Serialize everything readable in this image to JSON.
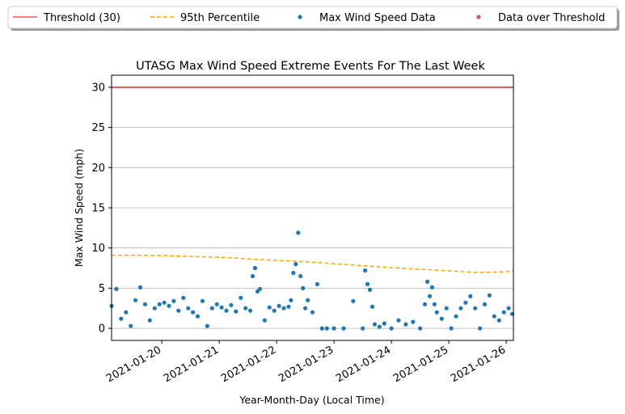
{
  "chart_data": {
    "type": "scatter",
    "title": "UTASG Max Wind Speed Extreme Events For The Last Week",
    "xlabel": "Year-Month-Day (Local Time)",
    "ylabel": "Max Wind Speed (mph)",
    "xlim": [
      "2021-01-19 03:00",
      "2021-01-26 03:00"
    ],
    "ylim": [
      -1.5,
      31.5
    ],
    "x_ticks": [
      "2021-01-20",
      "2021-01-21",
      "2021-01-22",
      "2021-01-23",
      "2021-01-24",
      "2021-01-25",
      "2021-01-26"
    ],
    "y_ticks": [
      0,
      5,
      10,
      15,
      20,
      25,
      30
    ],
    "grid": "horizontal",
    "legend_placement": "top-center-outside",
    "legend": [
      {
        "label": "Threshold (30)",
        "kind": "line",
        "color": "#f08080"
      },
      {
        "label": "95th Percentile",
        "kind": "dashed",
        "color": "#ffa500"
      },
      {
        "label": "Max Wind Speed Data",
        "kind": "marker",
        "color": "#1f77b4"
      },
      {
        "label": "Data over Threshold",
        "kind": "marker",
        "color": "#cd5c5c"
      }
    ],
    "threshold": {
      "value": 30,
      "color": "#e05555"
    },
    "percentile_95": {
      "x": [
        "2021-01-19 03:00",
        "2021-01-19 12:00",
        "2021-01-20 00:00",
        "2021-01-20 12:00",
        "2021-01-21 00:00",
        "2021-01-21 12:00",
        "2021-01-22 00:00",
        "2021-01-22 12:00",
        "2021-01-23 00:00",
        "2021-01-23 12:00",
        "2021-01-24 00:00",
        "2021-01-24 12:00",
        "2021-01-25 00:00",
        "2021-01-25 12:00",
        "2021-01-26 00:00",
        "2021-01-26 03:00"
      ],
      "y": [
        9.1,
        9.1,
        9.05,
        8.95,
        8.85,
        8.65,
        8.45,
        8.3,
        8.05,
        7.8,
        7.55,
        7.35,
        7.15,
        6.95,
        7.05,
        7.15
      ],
      "color": "#ffa500"
    },
    "series": [
      {
        "name": "Max Wind Speed Data",
        "color": "#1f77b4",
        "x": [
          "2021-01-19 03:00",
          "2021-01-19 05:00",
          "2021-01-19 07:00",
          "2021-01-19 09:00",
          "2021-01-19 11:00",
          "2021-01-19 13:00",
          "2021-01-19 15:00",
          "2021-01-19 17:00",
          "2021-01-19 19:00",
          "2021-01-19 21:00",
          "2021-01-19 23:00",
          "2021-01-20 01:00",
          "2021-01-20 03:00",
          "2021-01-20 05:00",
          "2021-01-20 07:00",
          "2021-01-20 09:00",
          "2021-01-20 11:00",
          "2021-01-20 13:00",
          "2021-01-20 15:00",
          "2021-01-20 17:00",
          "2021-01-20 19:00",
          "2021-01-20 21:00",
          "2021-01-20 23:00",
          "2021-01-21 01:00",
          "2021-01-21 03:00",
          "2021-01-21 05:00",
          "2021-01-21 07:00",
          "2021-01-21 09:00",
          "2021-01-21 11:00",
          "2021-01-21 13:00",
          "2021-01-21 14:00",
          "2021-01-21 15:00",
          "2021-01-21 16:00",
          "2021-01-21 17:00",
          "2021-01-21 19:00",
          "2021-01-21 21:00",
          "2021-01-21 23:00",
          "2021-01-22 01:00",
          "2021-01-22 03:00",
          "2021-01-22 05:00",
          "2021-01-22 06:00",
          "2021-01-22 07:00",
          "2021-01-22 08:00",
          "2021-01-22 09:00",
          "2021-01-22 10:00",
          "2021-01-22 11:00",
          "2021-01-22 12:00",
          "2021-01-22 13:00",
          "2021-01-22 15:00",
          "2021-01-22 17:00",
          "2021-01-22 19:00",
          "2021-01-22 21:00",
          "2021-01-23 00:00",
          "2021-01-23 04:00",
          "2021-01-23 08:00",
          "2021-01-23 12:00",
          "2021-01-23 13:00",
          "2021-01-23 14:00",
          "2021-01-23 15:00",
          "2021-01-23 16:00",
          "2021-01-23 17:00",
          "2021-01-23 19:00",
          "2021-01-23 21:00",
          "2021-01-24 00:00",
          "2021-01-24 03:00",
          "2021-01-24 06:00",
          "2021-01-24 09:00",
          "2021-01-24 12:00",
          "2021-01-24 14:00",
          "2021-01-24 15:00",
          "2021-01-24 16:00",
          "2021-01-24 17:00",
          "2021-01-24 18:00",
          "2021-01-24 19:00",
          "2021-01-24 21:00",
          "2021-01-24 23:00",
          "2021-01-25 01:00",
          "2021-01-25 03:00",
          "2021-01-25 05:00",
          "2021-01-25 07:00",
          "2021-01-25 09:00",
          "2021-01-25 11:00",
          "2021-01-25 13:00",
          "2021-01-25 15:00",
          "2021-01-25 17:00",
          "2021-01-25 19:00",
          "2021-01-25 21:00",
          "2021-01-25 23:00",
          "2021-01-26 01:00",
          "2021-01-26 02:30"
        ],
        "y": [
          2.8,
          4.9,
          1.2,
          2.0,
          0.3,
          3.5,
          5.1,
          3.0,
          1.0,
          2.5,
          3.0,
          3.2,
          2.8,
          3.4,
          2.2,
          3.8,
          2.5,
          2.0,
          1.5,
          3.4,
          0.3,
          2.5,
          3.0,
          2.6,
          2.2,
          2.9,
          2.1,
          3.8,
          2.5,
          2.2,
          6.5,
          7.5,
          4.6,
          4.9,
          1.0,
          2.6,
          2.2,
          2.8,
          2.5,
          2.7,
          3.5,
          6.9,
          8.0,
          11.9,
          6.5,
          5.0,
          2.5,
          3.5,
          2.0,
          5.5,
          0.0,
          0.0,
          0.0,
          0.0,
          3.4,
          0.0,
          7.2,
          5.5,
          4.8,
          2.7,
          0.5,
          0.2,
          0.6,
          0.0,
          1.0,
          0.5,
          0.8,
          0.0,
          3.0,
          5.8,
          4.0,
          5.1,
          3.0,
          2.0,
          1.2,
          2.5,
          0.0,
          1.5,
          2.5,
          3.2,
          4.0,
          2.5,
          0.0,
          3.0,
          4.1,
          1.5,
          1.0,
          2.0,
          2.5,
          1.8
        ]
      },
      {
        "name": "Data over Threshold",
        "color": "#cd5c5c",
        "x": [],
        "y": []
      }
    ]
  }
}
